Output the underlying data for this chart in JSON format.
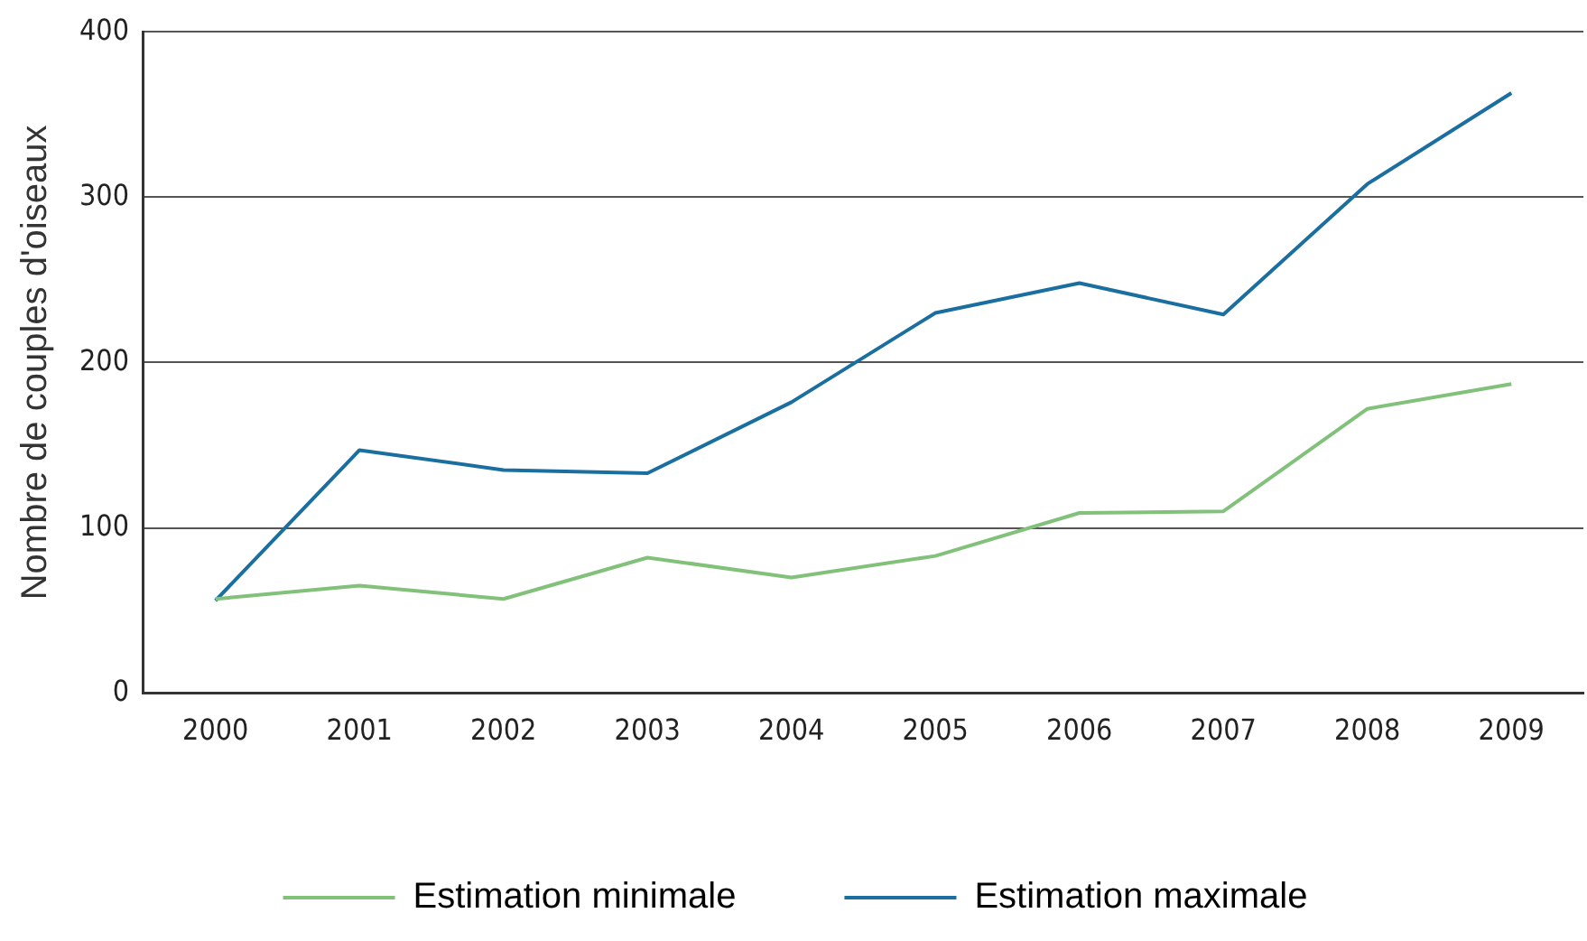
{
  "chart_data": {
    "type": "line",
    "ylabel": "Nombre de couples d'oiseaux",
    "categories": [
      "2000",
      "2001",
      "2002",
      "2003",
      "2004",
      "2005",
      "2006",
      "2007",
      "2008",
      "2009"
    ],
    "series": [
      {
        "name": "Estimation minimale",
        "color": "#82c17a",
        "values": [
          57,
          65,
          57,
          82,
          70,
          83,
          109,
          110,
          172,
          187
        ]
      },
      {
        "name": "Estimation maximale",
        "color": "#1a6fa0",
        "values": [
          56,
          147,
          135,
          133,
          176,
          230,
          248,
          229,
          308,
          363
        ]
      }
    ],
    "ylim": [
      0,
      400
    ],
    "yticks": [
      0,
      100,
      200,
      300,
      400
    ],
    "grid": "y",
    "legend": "bottom",
    "marker": "none",
    "line_style": "solid"
  }
}
